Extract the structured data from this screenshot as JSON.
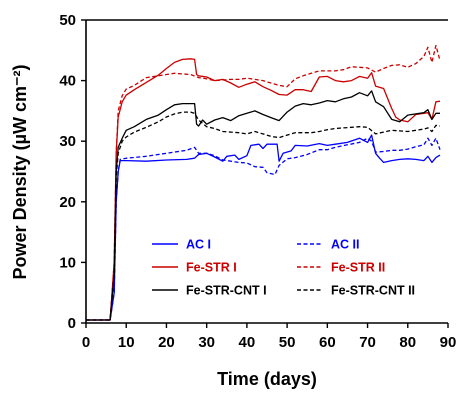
{
  "chart_data": {
    "type": "line",
    "xlabel": "Time (days)",
    "ylabel": "Power Density (µW cm⁻²)",
    "xlim": [
      0,
      90
    ],
    "ylim": [
      0,
      50
    ],
    "xticks": [
      "0",
      "10",
      "20",
      "30",
      "40",
      "50",
      "60",
      "70",
      "80",
      "90"
    ],
    "yticks": [
      "0",
      "10",
      "20",
      "30",
      "40",
      "50"
    ],
    "grid": false,
    "legend_placement": "bottom-center",
    "series": [
      {
        "name": "AC I",
        "color": "#0000ff",
        "dash": "solid",
        "points": [
          [
            0,
            0.5
          ],
          [
            6,
            0.5
          ],
          [
            7,
            5
          ],
          [
            7.5,
            20
          ],
          [
            8,
            25
          ],
          [
            8.5,
            26.8
          ],
          [
            10,
            26.8
          ],
          [
            15,
            26.7
          ],
          [
            20,
            26.9
          ],
          [
            25,
            27
          ],
          [
            27,
            27.2
          ],
          [
            28,
            27.8
          ],
          [
            30,
            28
          ],
          [
            32,
            27.4
          ],
          [
            34,
            26.7
          ],
          [
            35,
            27.5
          ],
          [
            37,
            27.7
          ],
          [
            38,
            27
          ],
          [
            40,
            27.6
          ],
          [
            41,
            29.3
          ],
          [
            43,
            29.5
          ],
          [
            44,
            28.8
          ],
          [
            45,
            29.5
          ],
          [
            47.5,
            29.5
          ],
          [
            48,
            26.7
          ],
          [
            49,
            28
          ],
          [
            51,
            28.4
          ],
          [
            52,
            29.3
          ],
          [
            55,
            29.2
          ],
          [
            58,
            29.6
          ],
          [
            60,
            29.3
          ],
          [
            62,
            29.5
          ],
          [
            65,
            29.8
          ],
          [
            68,
            30.5
          ],
          [
            70,
            29.8
          ],
          [
            71,
            31
          ],
          [
            72,
            28
          ],
          [
            73,
            27.2
          ],
          [
            74,
            26.5
          ],
          [
            76,
            26.8
          ],
          [
            78,
            27
          ],
          [
            80,
            27.1
          ],
          [
            82,
            27
          ],
          [
            84,
            26.8
          ],
          [
            85,
            27.5
          ],
          [
            86,
            26.5
          ],
          [
            87,
            27.3
          ],
          [
            88,
            27.7
          ]
        ]
      },
      {
        "name": "AC II",
        "color": "#0000ff",
        "dash": "dashed",
        "points": [
          [
            0,
            0.5
          ],
          [
            6,
            0.5
          ],
          [
            7,
            5
          ],
          [
            7.5,
            20
          ],
          [
            8,
            25
          ],
          [
            8.5,
            27
          ],
          [
            10,
            27.2
          ],
          [
            15,
            27.5
          ],
          [
            20,
            28
          ],
          [
            25,
            28.5
          ],
          [
            27,
            29
          ],
          [
            28,
            28
          ],
          [
            30,
            28
          ],
          [
            32,
            27.6
          ],
          [
            34,
            26.9
          ],
          [
            36,
            26.7
          ],
          [
            38,
            26.5
          ],
          [
            40,
            26.4
          ],
          [
            42,
            25.8
          ],
          [
            44,
            25.7
          ],
          [
            45,
            24.8
          ],
          [
            47,
            24.5
          ],
          [
            48,
            26
          ],
          [
            50,
            27.1
          ],
          [
            52,
            27.3
          ],
          [
            55,
            27.8
          ],
          [
            58,
            28.6
          ],
          [
            60,
            28.6
          ],
          [
            62,
            29
          ],
          [
            65,
            29.4
          ],
          [
            68,
            29.8
          ],
          [
            70,
            30.5
          ],
          [
            71,
            30
          ],
          [
            72,
            28.2
          ],
          [
            74,
            28.3
          ],
          [
            76,
            28.5
          ],
          [
            78,
            28.5
          ],
          [
            80,
            28.7
          ],
          [
            82,
            29.1
          ],
          [
            84,
            29.4
          ],
          [
            85,
            30.5
          ],
          [
            86,
            29.3
          ],
          [
            87,
            30.5
          ],
          [
            88,
            28.6
          ]
        ]
      },
      {
        "name": "Fe-STR I",
        "color": "#cc0000",
        "dash": "solid",
        "points": [
          [
            0,
            0.5
          ],
          [
            6,
            0.5
          ],
          [
            7,
            10
          ],
          [
            7.5,
            28
          ],
          [
            8,
            34
          ],
          [
            9,
            36.5
          ],
          [
            10,
            37.6
          ],
          [
            12,
            38.5
          ],
          [
            15,
            39.7
          ],
          [
            18,
            40.9
          ],
          [
            20,
            42
          ],
          [
            22,
            43
          ],
          [
            24,
            43.5
          ],
          [
            26,
            43.6
          ],
          [
            27,
            43.5
          ],
          [
            27.5,
            41
          ],
          [
            28,
            40.8
          ],
          [
            30,
            40.6
          ],
          [
            32,
            40
          ],
          [
            34,
            40.2
          ],
          [
            36,
            39.6
          ],
          [
            38,
            38.9
          ],
          [
            40,
            39.4
          ],
          [
            42,
            39.8
          ],
          [
            44,
            39
          ],
          [
            46,
            38.4
          ],
          [
            48,
            37.7
          ],
          [
            50,
            37.6
          ],
          [
            52,
            38.5
          ],
          [
            54,
            38.5
          ],
          [
            56,
            38.2
          ],
          [
            58,
            40.6
          ],
          [
            60,
            40.7
          ],
          [
            62,
            40
          ],
          [
            64,
            39.8
          ],
          [
            66,
            40
          ],
          [
            68,
            40.7
          ],
          [
            70,
            40.4
          ],
          [
            71,
            41.3
          ],
          [
            72,
            39.1
          ],
          [
            74,
            38.7
          ],
          [
            76,
            35.4
          ],
          [
            77,
            34
          ],
          [
            78,
            33.5
          ],
          [
            80,
            33.2
          ],
          [
            82,
            34.4
          ],
          [
            84,
            34.6
          ],
          [
            85,
            34.7
          ],
          [
            86,
            33.6
          ],
          [
            87,
            36.5
          ],
          [
            88,
            36.6
          ]
        ]
      },
      {
        "name": "Fe-STR II",
        "color": "#cc0000",
        "dash": "dashed",
        "points": [
          [
            0,
            0.5
          ],
          [
            6,
            0.5
          ],
          [
            7,
            10
          ],
          [
            7.5,
            28
          ],
          [
            8,
            35
          ],
          [
            9,
            37.5
          ],
          [
            10,
            38.6
          ],
          [
            12,
            39.2
          ],
          [
            15,
            40.5
          ],
          [
            18,
            40.8
          ],
          [
            20,
            41
          ],
          [
            22,
            41.2
          ],
          [
            24,
            41.1
          ],
          [
            26,
            41
          ],
          [
            28,
            40.5
          ],
          [
            30,
            40.3
          ],
          [
            32,
            40
          ],
          [
            34,
            40.1
          ],
          [
            36,
            40.2
          ],
          [
            38,
            40.2
          ],
          [
            40,
            40.4
          ],
          [
            42,
            40.2
          ],
          [
            44,
            40
          ],
          [
            46,
            39.6
          ],
          [
            48,
            39.2
          ],
          [
            50,
            39
          ],
          [
            52,
            40.3
          ],
          [
            54,
            40.8
          ],
          [
            56,
            41.2
          ],
          [
            58,
            41.6
          ],
          [
            60,
            41.6
          ],
          [
            62,
            41.6
          ],
          [
            64,
            41.8
          ],
          [
            66,
            42.3
          ],
          [
            68,
            42.2
          ],
          [
            70,
            42.1
          ],
          [
            72,
            41.4
          ],
          [
            74,
            42
          ],
          [
            76,
            42.5
          ],
          [
            78,
            42.6
          ],
          [
            80,
            42.2
          ],
          [
            82,
            42.8
          ],
          [
            84,
            44
          ],
          [
            85,
            45.5
          ],
          [
            86,
            43
          ],
          [
            87,
            45.8
          ],
          [
            88,
            43.3
          ]
        ]
      },
      {
        "name": "Fe-STR-CNT I",
        "color": "#000000",
        "dash": "solid",
        "points": [
          [
            0,
            0.5
          ],
          [
            6,
            0.5
          ],
          [
            7,
            8
          ],
          [
            7.5,
            25
          ],
          [
            8,
            29
          ],
          [
            9,
            30.5
          ],
          [
            10,
            31.8
          ],
          [
            12,
            32.4
          ],
          [
            15,
            33.6
          ],
          [
            18,
            34.3
          ],
          [
            20,
            35.2
          ],
          [
            22,
            36
          ],
          [
            24,
            36.2
          ],
          [
            26,
            36.2
          ],
          [
            27,
            36.2
          ],
          [
            27.5,
            32.8
          ],
          [
            28,
            32.5
          ],
          [
            29,
            33.5
          ],
          [
            30,
            32.8
          ],
          [
            32,
            33.5
          ],
          [
            34,
            33.9
          ],
          [
            36,
            33.4
          ],
          [
            38,
            34.2
          ],
          [
            40,
            34.6
          ],
          [
            42,
            35
          ],
          [
            44,
            34.4
          ],
          [
            46,
            33.9
          ],
          [
            48,
            33.4
          ],
          [
            50,
            34.8
          ],
          [
            52,
            35.8
          ],
          [
            54,
            36.2
          ],
          [
            56,
            36
          ],
          [
            58,
            36.3
          ],
          [
            60,
            36.7
          ],
          [
            62,
            36.5
          ],
          [
            64,
            37
          ],
          [
            66,
            37.3
          ],
          [
            68,
            38
          ],
          [
            70,
            37.5
          ],
          [
            71,
            38.3
          ],
          [
            72,
            36.5
          ],
          [
            74,
            35.7
          ],
          [
            76,
            33.6
          ],
          [
            78,
            33.2
          ],
          [
            80,
            34.3
          ],
          [
            82,
            34.5
          ],
          [
            84,
            34.7
          ],
          [
            85,
            35.2
          ],
          [
            86,
            33.6
          ],
          [
            87,
            34.6
          ],
          [
            88,
            34.6
          ]
        ]
      },
      {
        "name": "Fe-STR-CNT II",
        "color": "#000000",
        "dash": "dashed",
        "points": [
          [
            0,
            0.5
          ],
          [
            6,
            0.5
          ],
          [
            7,
            8
          ],
          [
            7.5,
            24
          ],
          [
            8,
            28
          ],
          [
            9,
            30
          ],
          [
            10,
            30.7
          ],
          [
            12,
            31.5
          ],
          [
            15,
            32.3
          ],
          [
            18,
            33.2
          ],
          [
            20,
            34
          ],
          [
            22,
            34.5
          ],
          [
            24,
            34.8
          ],
          [
            26,
            34.8
          ],
          [
            27,
            34.6
          ],
          [
            28,
            33.5
          ],
          [
            30,
            32.4
          ],
          [
            32,
            32.1
          ],
          [
            34,
            31.6
          ],
          [
            36,
            31.5
          ],
          [
            38,
            31.4
          ],
          [
            40,
            31.2
          ],
          [
            42,
            31.6
          ],
          [
            44,
            31.2
          ],
          [
            46,
            30.8
          ],
          [
            48,
            30.6
          ],
          [
            50,
            31
          ],
          [
            52,
            31.4
          ],
          [
            54,
            31.4
          ],
          [
            56,
            31.4
          ],
          [
            58,
            31.6
          ],
          [
            60,
            31.9
          ],
          [
            62,
            32.1
          ],
          [
            64,
            32.2
          ],
          [
            66,
            32.3
          ],
          [
            68,
            32.4
          ],
          [
            70,
            32.3
          ],
          [
            72,
            31.2
          ],
          [
            74,
            31.5
          ],
          [
            76,
            31.8
          ],
          [
            78,
            31.7
          ],
          [
            80,
            31.6
          ],
          [
            82,
            31.8
          ],
          [
            84,
            32
          ],
          [
            85,
            32.2
          ],
          [
            86,
            31.6
          ],
          [
            87,
            32.6
          ],
          [
            88,
            32.5
          ]
        ]
      }
    ]
  }
}
